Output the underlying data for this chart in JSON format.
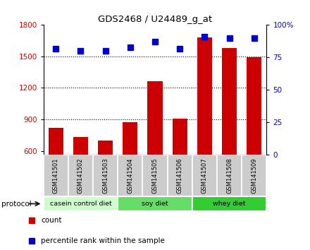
{
  "title": "GDS2468 / U24489_g_at",
  "samples": [
    "GSM141501",
    "GSM141502",
    "GSM141503",
    "GSM141504",
    "GSM141505",
    "GSM141506",
    "GSM141507",
    "GSM141508",
    "GSM141509"
  ],
  "counts": [
    820,
    730,
    700,
    870,
    1265,
    910,
    1680,
    1580,
    1490
  ],
  "percentiles": [
    82,
    80,
    80,
    83,
    87,
    82,
    91,
    90,
    90
  ],
  "groups": [
    {
      "label": "casein control diet",
      "start": 0,
      "end": 3,
      "color": "#ccffcc"
    },
    {
      "label": "soy diet",
      "start": 3,
      "end": 6,
      "color": "#66dd66"
    },
    {
      "label": "whey diet",
      "start": 6,
      "end": 9,
      "color": "#33cc33"
    }
  ],
  "ylim_left": [
    560,
    1800
  ],
  "ylim_right": [
    0,
    100
  ],
  "yticks_left": [
    600,
    900,
    1200,
    1500,
    1800
  ],
  "yticks_right": [
    0,
    25,
    50,
    75,
    100
  ],
  "ytick_right_labels": [
    "0",
    "25",
    "50",
    "75",
    "100%"
  ],
  "bar_color": "#cc0000",
  "dot_color": "#0000cc",
  "bg_color": "#ffffff",
  "protocol_label": "protocol",
  "legend_count": "count",
  "legend_percentile": "percentile rank within the sample",
  "bar_width": 0.6,
  "sample_box_color": "#cccccc",
  "grid_yticks": [
    900,
    1200,
    1500
  ]
}
